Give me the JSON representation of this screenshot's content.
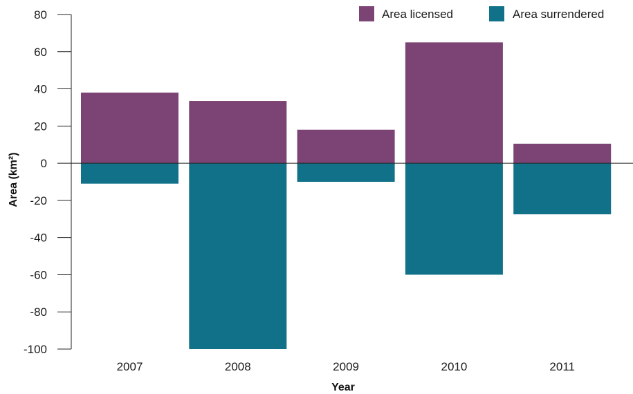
{
  "chart_data": {
    "type": "bar",
    "stacked": "diverging",
    "categories": [
      "2007",
      "2008",
      "2009",
      "2010",
      "2011"
    ],
    "series": [
      {
        "name": "Area licensed",
        "values": [
          38,
          33.5,
          18,
          65,
          10.5
        ],
        "color": "#7b4474"
      },
      {
        "name": "Area surrendered",
        "values": [
          -11,
          -100,
          -10,
          -60,
          -27.5
        ],
        "color": "#117189"
      }
    ],
    "xlabel": "Year",
    "ylabel": "Area (km²)",
    "ylim": [
      -100,
      80
    ],
    "yticks": [
      80,
      60,
      40,
      20,
      0,
      -20,
      -40,
      -60,
      -80,
      -100
    ],
    "legend_position": "top-right",
    "grid": false
  }
}
